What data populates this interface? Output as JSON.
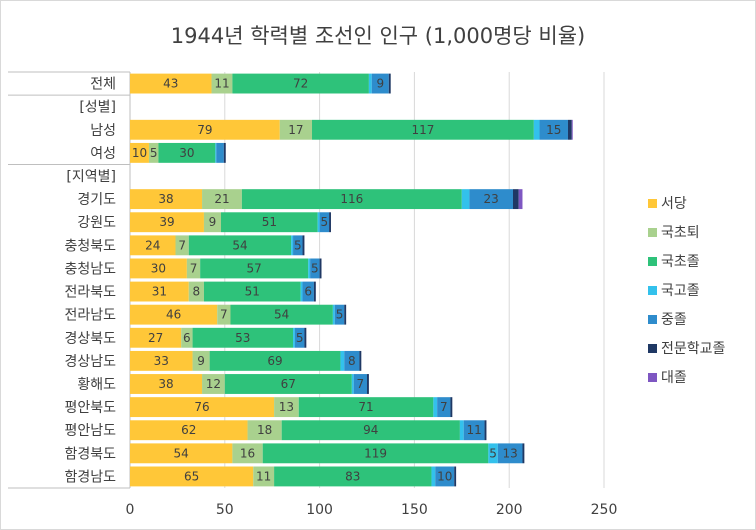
{
  "chart_data": {
    "type": "bar",
    "orientation": "horizontal",
    "stacked": true,
    "title": "1944년 학력별 조선인 인구 (1,000명당 비율)",
    "categories": [
      "전체",
      "[성별]",
      "남성",
      "여성",
      "[지역별]",
      "경기도",
      "강원도",
      "충청북도",
      "충청남도",
      "전라북도",
      "전라남도",
      "경상북도",
      "경상남도",
      "황해도",
      "평안북도",
      "평안남도",
      "함경북도",
      "함경남도"
    ],
    "series": [
      {
        "name": "서당",
        "color": "#ffc738",
        "values": [
          43,
          null,
          79,
          10,
          null,
          38,
          39,
          24,
          30,
          31,
          46,
          27,
          33,
          38,
          76,
          62,
          54,
          65
        ],
        "labels": [
          "43",
          "",
          "79",
          "10",
          "",
          "38",
          "39",
          "24",
          "30",
          "31",
          "46",
          "27",
          "33",
          "38",
          "76",
          "62",
          "54",
          "65"
        ]
      },
      {
        "name": "국초퇴",
        "color": "#a9d18e",
        "values": [
          11,
          null,
          17,
          5,
          null,
          21,
          9,
          7,
          7,
          8,
          7,
          6,
          9,
          12,
          13,
          18,
          16,
          11
        ],
        "labels": [
          "11",
          "",
          "17",
          "5",
          "",
          "21",
          "9",
          "7",
          "7",
          "8",
          "7",
          "6",
          "9",
          "12",
          "13",
          "18",
          "16",
          "11"
        ]
      },
      {
        "name": "국초졸",
        "color": "#2ec27a",
        "values": [
          72,
          null,
          117,
          30,
          null,
          116,
          51,
          54,
          57,
          51,
          54,
          53,
          69,
          67,
          71,
          94,
          119,
          83
        ],
        "labels": [
          "72",
          "",
          "117",
          "30",
          "",
          "116",
          "51",
          "54",
          "57",
          "51",
          "54",
          "53",
          "69",
          "67",
          "71",
          "94",
          "119",
          "83"
        ]
      },
      {
        "name": "국고졸",
        "color": "#33c1ec",
        "values": [
          1.5,
          null,
          3,
          0.5,
          null,
          4,
          1,
          1,
          1,
          1,
          1,
          1,
          2,
          1,
          2,
          2,
          5,
          2
        ],
        "labels": [
          "",
          "",
          "",
          "",
          "",
          "",
          "",
          "",
          "",
          "",
          "",
          "",
          "",
          "",
          "",
          "",
          "5",
          ""
        ]
      },
      {
        "name": "중졸",
        "color": "#2e8ccc",
        "values": [
          9,
          null,
          15,
          4,
          null,
          23,
          5,
          5,
          5,
          6,
          5,
          5,
          8,
          7,
          7,
          11,
          13,
          10
        ],
        "labels": [
          "9",
          "",
          "15",
          "",
          "",
          "23",
          "5",
          "5",
          "5",
          "6",
          "5",
          "5",
          "8",
          "7",
          "7",
          "11",
          "13",
          "10"
        ]
      },
      {
        "name": "전문학교졸",
        "color": "#1f3864",
        "values": [
          1,
          null,
          2,
          1,
          null,
          3,
          1,
          1,
          1,
          1,
          1,
          1,
          1,
          1,
          1,
          1,
          1,
          1
        ],
        "labels": [
          "",
          "",
          "",
          "",
          "",
          "",
          "",
          "",
          "",
          "",
          "",
          "",
          "",
          "",
          "",
          "",
          "",
          ""
        ]
      },
      {
        "name": "대졸",
        "color": "#7e57c2",
        "values": [
          0,
          null,
          0.5,
          0,
          null,
          2,
          0,
          0,
          0,
          0,
          0,
          0,
          0,
          0,
          0,
          0,
          0,
          0
        ],
        "labels": [
          "",
          "",
          "",
          "",
          "",
          "",
          "",
          "",
          "",
          "",
          "",
          "",
          "",
          "",
          "",
          "",
          "",
          ""
        ]
      }
    ],
    "xlim": [
      0,
      250
    ],
    "xticks": [
      "0",
      "50",
      "100",
      "150",
      "200",
      "250"
    ],
    "grid": true,
    "legend": "right"
  }
}
